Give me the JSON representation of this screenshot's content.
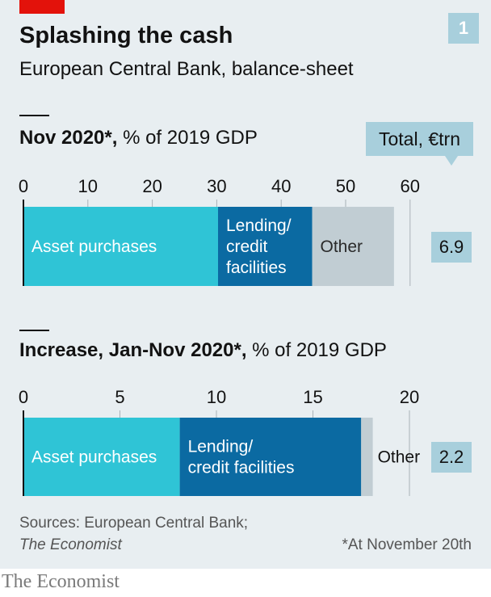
{
  "header": {
    "title": "Splashing the cash",
    "subtitle": "European Central Bank, balance-sheet",
    "chart_number": "1"
  },
  "total_label": "Total, €trn",
  "sources_line1": "Sources: European Central Bank;",
  "sources_line2": "The Economist",
  "footnote": "*At November 20th",
  "brand": "The Economist",
  "colors": {
    "asset_purchases": "#2fc4d6",
    "lending": "#0b6aa2",
    "other": "#c1cdd3",
    "background": "#e8eef1",
    "total_box": "#a8cfdc"
  },
  "chart_data": [
    {
      "type": "bar",
      "orientation": "horizontal-stacked",
      "title_bold": "Nov 2020*,",
      "title_rest": "% of 2019 GDP",
      "xlim": [
        0,
        60
      ],
      "ticks": [
        "0",
        "10",
        "20",
        "30",
        "40",
        "50",
        "60"
      ],
      "tick_values": [
        0,
        10,
        20,
        30,
        40,
        50,
        60
      ],
      "series": [
        {
          "name": "Asset purchases",
          "value": 30.2,
          "label_lines": [
            "Asset purchases"
          ]
        },
        {
          "name": "Lending/credit facilities",
          "value": 14.6,
          "label_lines": [
            "Lending/",
            "credit",
            "facilities"
          ]
        },
        {
          "name": "Other",
          "value": 12.7,
          "label_lines": [
            "Other"
          ]
        }
      ],
      "total": "6.9"
    },
    {
      "type": "bar",
      "orientation": "horizontal-stacked",
      "title_bold": "Increase, Jan-Nov 2020*,",
      "title_rest": "% of 2019 GDP",
      "xlim": [
        0,
        20
      ],
      "ticks": [
        "0",
        "5",
        "10",
        "15",
        "20"
      ],
      "tick_values": [
        0,
        5,
        10,
        15,
        20
      ],
      "series": [
        {
          "name": "Asset purchases",
          "value": 8.1,
          "label_lines": [
            "Asset purchases"
          ]
        },
        {
          "name": "Lending/credit facilities",
          "value": 9.4,
          "label_lines": [
            "Lending/",
            "credit facilities"
          ]
        },
        {
          "name": "Other",
          "value": 0.6,
          "label_lines": [
            "Other"
          ]
        }
      ],
      "total": "2.2"
    }
  ]
}
